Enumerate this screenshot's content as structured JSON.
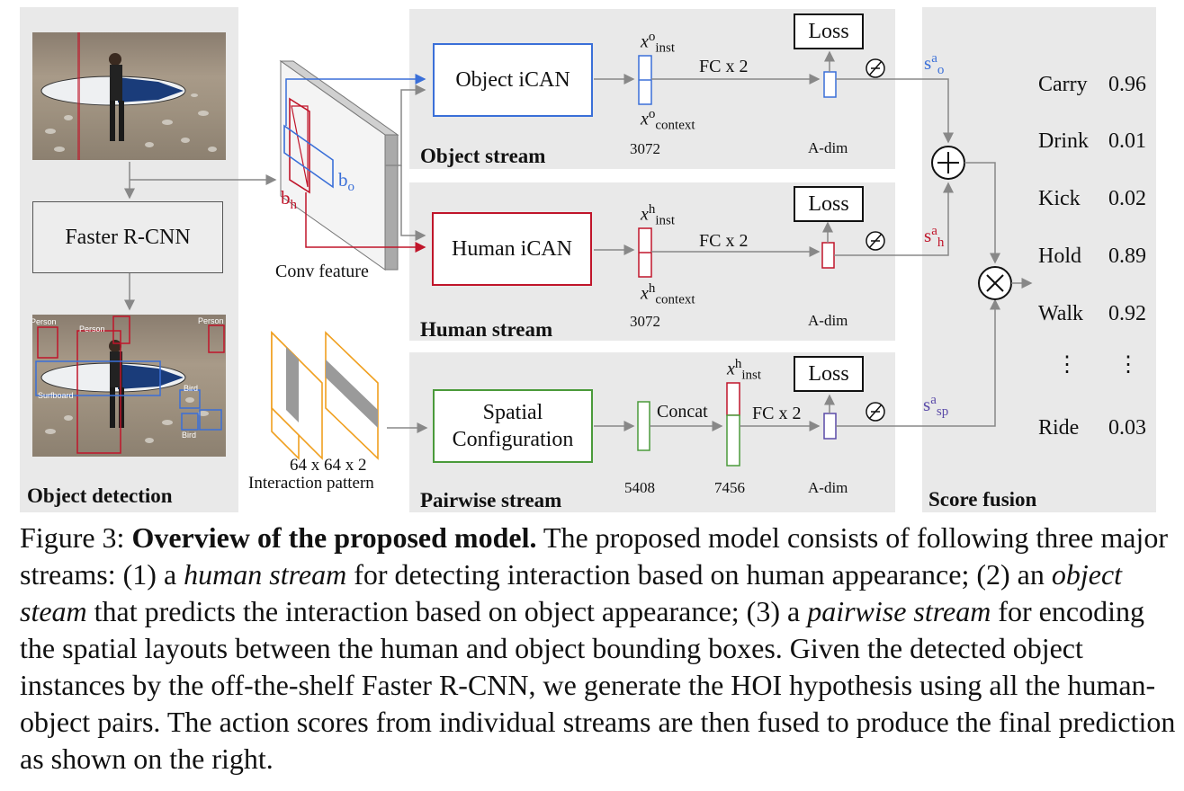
{
  "panels": {
    "object_detection": "Object detection",
    "object_stream": "Object stream",
    "human_stream": "Human stream",
    "pairwise_stream": "Pairwise stream",
    "score_fusion": "Score fusion"
  },
  "detection": {
    "faster_rcnn": "Faster R-CNN",
    "labels": [
      "Person",
      "Person",
      "Person",
      "Surfboard",
      "Bird",
      "Bird"
    ]
  },
  "conv": {
    "label": "Conv feature",
    "b_h": "b",
    "b_h_sub": "h",
    "b_o": "b",
    "b_o_sub": "o"
  },
  "interaction_pattern": {
    "size": "64 x 64 x 2",
    "label": "Interaction pattern"
  },
  "object_stream": {
    "module": "Object iCAN",
    "x_inst": "x",
    "x_inst_sup": "o",
    "x_inst_sub": "inst",
    "x_ctx": "x",
    "x_ctx_sup": "o",
    "x_ctx_sub": "context",
    "dim": "3072",
    "fc": "FC x 2",
    "loss": "Loss",
    "adim": "A-dim",
    "score": "s",
    "score_sup": "a",
    "score_sub": "o"
  },
  "human_stream": {
    "module": "Human iCAN",
    "x_inst": "x",
    "x_inst_sup": "h",
    "x_inst_sub": "inst",
    "x_ctx": "x",
    "x_ctx_sup": "h",
    "x_ctx_sub": "context",
    "dim": "3072",
    "fc": "FC x 2",
    "loss": "Loss",
    "adim": "A-dim",
    "score": "s",
    "score_sup": "a",
    "score_sub": "h"
  },
  "pairwise_stream": {
    "module_line1": "Spatial",
    "module_line2": "Configuration",
    "concat": "Concat",
    "x_inst": "x",
    "x_inst_sup": "h",
    "x_inst_sub": "inst",
    "dim1": "5408",
    "dim2": "7456",
    "fc": "FC x 2",
    "loss": "Loss",
    "adim": "A-dim",
    "score": "s",
    "score_sup": "a",
    "score_sub": "sp"
  },
  "fusion": {
    "plus": "+",
    "times": "×",
    "scores": [
      {
        "action": "Carry",
        "value": "0.96"
      },
      {
        "action": "Drink",
        "value": "0.01"
      },
      {
        "action": "Kick",
        "value": "0.02"
      },
      {
        "action": "Hold",
        "value": "0.89"
      },
      {
        "action": "Walk",
        "value": "0.92"
      },
      {
        "action": "⋮",
        "value": "⋮"
      },
      {
        "action": "Ride",
        "value": "0.03"
      }
    ]
  },
  "caption": {
    "prefix": "Figure 3: ",
    "title": "Overview of the proposed model.",
    "t1": " The proposed model consists of following three major streams: (1) a ",
    "e1": "human stream",
    "t2": " for detecting interaction based on human appearance; (2) an ",
    "e2": "object steam",
    "t3": " that predicts the interaction based on object appearance; (3) a ",
    "e3": "pairwise stream",
    "t4": " for encoding the spatial layouts between the human and object bounding boxes. Given the detected object instances by the off-the-shelf Faster R-CNN, we generate the HOI hypothesis using all the human-object pairs. The action scores from individual streams are then fused to produce the final prediction as shown on the right."
  },
  "colors": {
    "panel": "#e9e9e9",
    "blue": "#3a6fd8",
    "red": "#c0152a",
    "green": "#4a9a3a",
    "orange": "#f0a020",
    "purple": "#5a4aa8"
  }
}
